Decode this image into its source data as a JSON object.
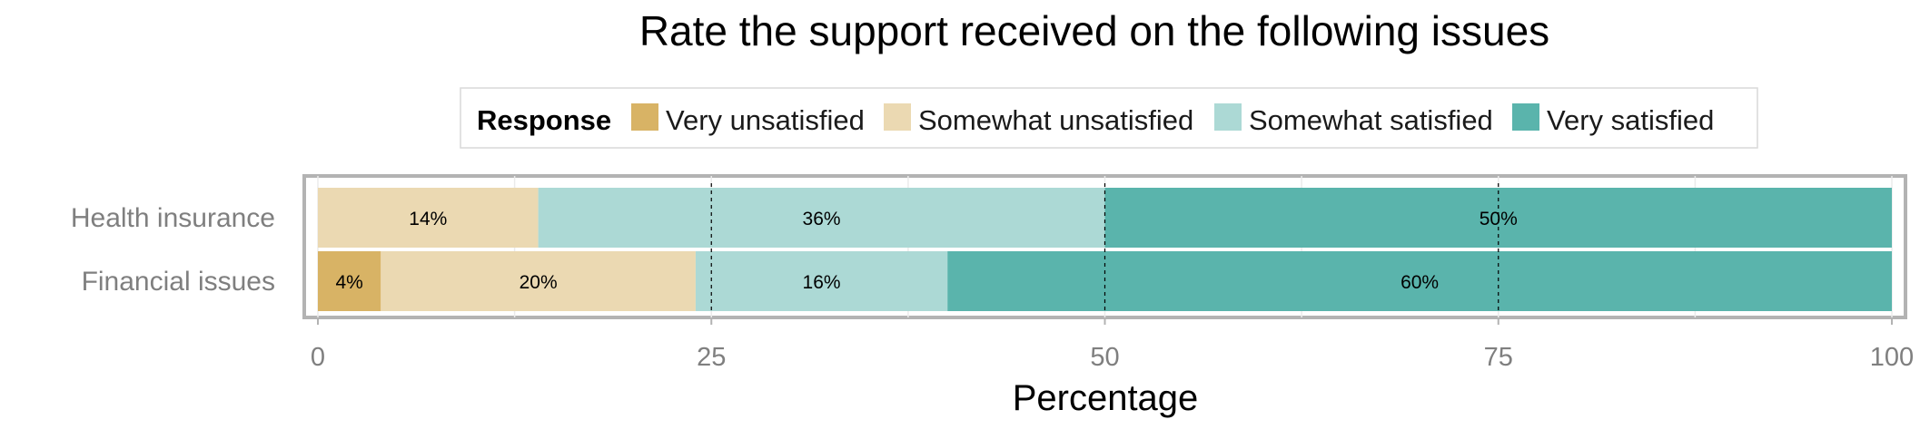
{
  "chart_data": {
    "type": "bar",
    "orientation": "horizontal",
    "stacked": true,
    "title": "Rate the support received on the following issues",
    "xlabel": "Percentage",
    "ylabel": "",
    "xlim": [
      0,
      100
    ],
    "x_ticks": [
      "0",
      "25",
      "50",
      "75",
      "100"
    ],
    "legend": {
      "title": "Response",
      "position": "top"
    },
    "categories": [
      "Health insurance",
      "Financial issues"
    ],
    "series": [
      {
        "name": "Very unsatisfied",
        "color": "#D8B365",
        "values": [
          0,
          4
        ],
        "labels": [
          "",
          "4%"
        ]
      },
      {
        "name": "Somewhat unsatisfied",
        "color": "#EBD9B2",
        "values": [
          14,
          20
        ],
        "labels": [
          "14%",
          "20%"
        ]
      },
      {
        "name": "Somewhat satisfied",
        "color": "#ACD9D5",
        "values": [
          36,
          16
        ],
        "labels": [
          "36%",
          "16%"
        ]
      },
      {
        "name": "Very satisfied",
        "color": "#5AB4AC",
        "values": [
          50,
          60
        ],
        "labels": [
          "50%",
          "60%"
        ]
      }
    ]
  }
}
